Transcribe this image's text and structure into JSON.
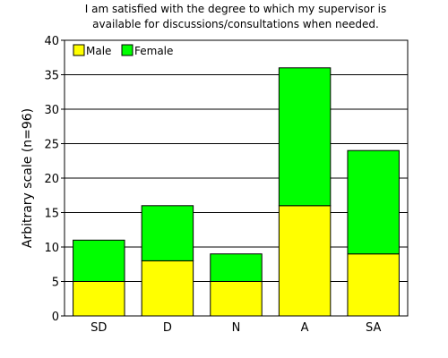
{
  "chart_data": {
    "type": "bar",
    "stacked": true,
    "title_lines": [
      "I am satisfied with the degree to which my supervisor is",
      "available for discussions/consultations when needed."
    ],
    "ylabel": "Arbitrary scale (n=96)",
    "xlabel": "",
    "categories": [
      "SD",
      "D",
      "N",
      "A",
      "SA"
    ],
    "series": [
      {
        "name": "Male",
        "color": "#ffff00",
        "values": [
          5,
          8,
          5,
          16,
          9
        ]
      },
      {
        "name": "Female",
        "color": "#00ff00",
        "values": [
          6,
          8,
          4,
          20,
          15
        ]
      }
    ],
    "ylim": [
      0,
      40
    ],
    "yticks": [
      0,
      5,
      10,
      15,
      20,
      25,
      30,
      35,
      40
    ],
    "grid": true,
    "legend_position": "top-left"
  }
}
